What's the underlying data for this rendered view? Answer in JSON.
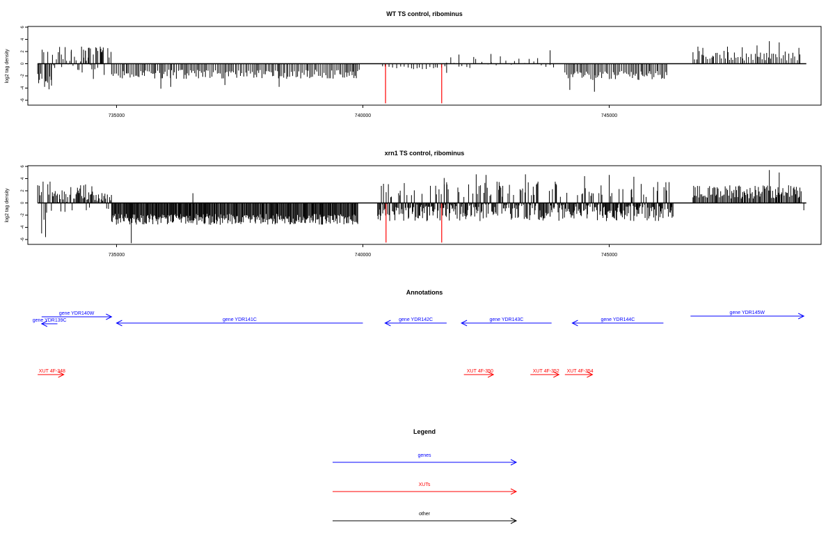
{
  "chart_data": [
    {
      "type": "bar",
      "title": "WT TS control, ribominus",
      "xlabel": "",
      "ylabel": "log2 tag density",
      "xlim": [
        733200,
        749300
      ],
      "ylim": [
        -7,
        6
      ],
      "xticks": [
        735000,
        740000,
        745000
      ],
      "xtick_labels": [
        "735000",
        "740000",
        "745000"
      ],
      "yticks": [
        -6,
        -4,
        -2,
        0,
        2,
        4,
        6
      ],
      "ytick_labels": [
        "-6",
        "-4",
        "-2",
        "0",
        "2",
        "4",
        "6"
      ],
      "baseline_range": [
        733400,
        749000
      ],
      "colors": {
        "bar": "#000000",
        "highlight": "#ff0000"
      },
      "highlights": [
        {
          "x": 740460,
          "y": -6.5
        },
        {
          "x": 741600,
          "y": -6.5
        }
      ],
      "regions": [
        {
          "from": 733400,
          "to": 733700,
          "mean": -2.0,
          "amp": 1.6,
          "step": 30,
          "pos_frac": 0.1
        },
        {
          "from": 733700,
          "to": 734900,
          "mean": -0.4,
          "amp": 2.4,
          "step": 30,
          "pos_frac": 0.5
        },
        {
          "from": 734900,
          "to": 739950,
          "mean": -1.6,
          "amp": 1.5,
          "step": 30,
          "pos_frac": 0.0
        },
        {
          "from": 740400,
          "to": 741700,
          "mean": -0.6,
          "amp": 0.5,
          "step": 60,
          "pos_frac": 0.0
        },
        {
          "from": 741700,
          "to": 743900,
          "mean": -0.1,
          "amp": 1.2,
          "step": 90,
          "pos_frac": 0.4
        },
        {
          "from": 744100,
          "to": 746200,
          "mean": -1.8,
          "amp": 1.5,
          "step": 30,
          "pos_frac": 0.0
        },
        {
          "from": 746700,
          "to": 748900,
          "mean": 1.3,
          "amp": 1.5,
          "step": 40,
          "pos_frac": 1.0
        }
      ],
      "series": [
        {
          "x": [
            733420,
            733490,
            733540,
            733560,
            733600,
            733630,
            733680,
            733880,
            734080,
            734290,
            734330,
            734370,
            734430,
            734470,
            734530,
            734580,
            734620,
            734670,
            734690,
            734720,
            735900,
            736100,
            737200,
            738300,
            739800,
            741700,
            741950,
            742250,
            742600,
            743800,
            744200,
            744700,
            746800,
            746900,
            747100,
            747400,
            747700,
            748000,
            748250,
            748450,
            748850
          ],
          "y": [
            -3.2,
            2.3,
            -3.8,
            -2.9,
            -3.1,
            -4.2,
            -3.6,
            1.5,
            2.0,
            2.8,
            2.3,
            2.1,
            2.6,
            2.5,
            -2.5,
            2.7,
            2.1,
            2.8,
            1.9,
            2.2,
            -4.1,
            -3.8,
            -3.5,
            -3.8,
            -1.3,
            -1.5,
            1.5,
            1.1,
            1.6,
            2.2,
            -4.3,
            -4.6,
            2.8,
            2.6,
            1.3,
            2.8,
            2.7,
            3.0,
            3.7,
            3.5,
            2.6
          ]
        }
      ]
    },
    {
      "type": "bar",
      "title": "xrn1 TS control, ribominus",
      "xlabel": "",
      "ylabel": "log2 tag density",
      "xlim": [
        733200,
        749300
      ],
      "ylim": [
        -7,
        6
      ],
      "xticks": [
        735000,
        740000,
        745000
      ],
      "xtick_labels": [
        "735000",
        "740000",
        "745000"
      ],
      "yticks": [
        -6,
        -4,
        -2,
        0,
        2,
        4,
        6
      ],
      "ytick_labels": [
        "-6",
        "-4",
        "-2",
        "0",
        "2",
        "4",
        "6"
      ],
      "baseline_range": [
        733400,
        749000
      ],
      "colors": {
        "bar": "#000000",
        "highlight": "#ff0000"
      },
      "highlights": [
        {
          "x": 740470,
          "y": -6.5
        },
        {
          "x": 741600,
          "y": -6.5
        }
      ],
      "regions": [
        {
          "from": 733400,
          "to": 733700,
          "mean": -2.0,
          "amp": 2.5,
          "step": 25,
          "pos_frac": 0.3
        },
        {
          "from": 733700,
          "to": 734900,
          "mean": 0.2,
          "amp": 2.8,
          "step": 20,
          "pos_frac": 0.6
        },
        {
          "from": 734900,
          "to": 739900,
          "mean": -2.5,
          "amp": 1.8,
          "step": 15,
          "pos_frac": 0.0
        },
        {
          "from": 740300,
          "to": 746300,
          "mean": -1.3,
          "amp": 2.8,
          "step": 15,
          "pos_frac": 0.2
        },
        {
          "from": 746700,
          "to": 748900,
          "mean": 1.8,
          "amp": 2.0,
          "step": 20,
          "pos_frac": 1.0
        }
      ],
      "series": [
        {
          "x": [
            733480,
            733560,
            735300,
            736550,
            741200,
            741650,
            741700,
            742300,
            742500,
            743300,
            744500,
            745000,
            745500,
            745900,
            746150,
            748250,
            748450,
            748950
          ],
          "y": [
            -5.0,
            -5.6,
            -6.6,
            1.6,
            1.5,
            4.1,
            3.4,
            4.7,
            4.6,
            4.7,
            4.4,
            4.6,
            4.3,
            2.6,
            3.4,
            5.4,
            5.0,
            -1.2
          ]
        }
      ]
    }
  ],
  "annotations": {
    "title": "Annotations",
    "genes": [
      {
        "label": "gene YDR139C",
        "from": 733800,
        "to": 733480,
        "dir": "left"
      },
      {
        "label": "gene YDR140W",
        "from": 733480,
        "to": 734900,
        "dir": "right"
      },
      {
        "label": "gene YDR141C",
        "from": 740000,
        "to": 735000,
        "dir": "left"
      },
      {
        "label": "gene YDR142C",
        "from": 741700,
        "to": 740450,
        "dir": "left"
      },
      {
        "label": "gene YDR143C",
        "from": 743830,
        "to": 742000,
        "dir": "left"
      },
      {
        "label": "gene YDR144C",
        "from": 746100,
        "to": 744250,
        "dir": "left"
      },
      {
        "label": "gene YDR145W",
        "from": 746650,
        "to": 748950,
        "dir": "right"
      }
    ],
    "xuts": [
      {
        "label": "XUT 4F-348",
        "from": 733400,
        "to": 733930,
        "dir": "right"
      },
      {
        "label": "XUT 4F-350",
        "from": 742050,
        "to": 742650,
        "dir": "right"
      },
      {
        "label": "XUT 4F-352",
        "from": 743400,
        "to": 743980,
        "dir": "right"
      },
      {
        "label": "XUT 4F-354",
        "from": 744100,
        "to": 744660,
        "dir": "right"
      }
    ]
  },
  "legend": {
    "title": "Legend",
    "items": [
      {
        "label": "genes",
        "color": "#0000ff"
      },
      {
        "label": "XUTs",
        "color": "#ff0000"
      },
      {
        "label": "other",
        "color": "#000000"
      }
    ]
  },
  "colors": {
    "gene": "#0000ff",
    "xut": "#ff0000",
    "axis": "#000000"
  }
}
